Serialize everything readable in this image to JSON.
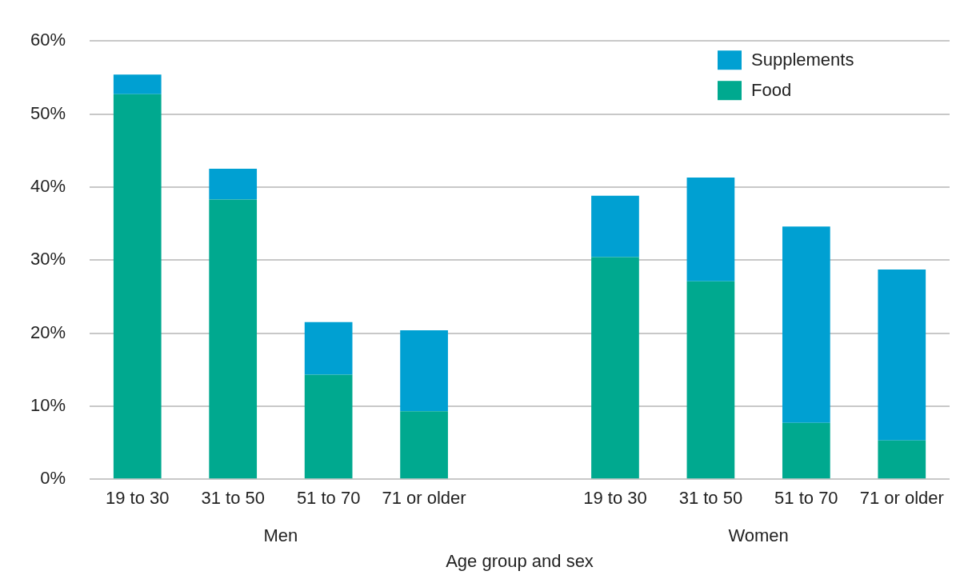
{
  "chart_data": {
    "type": "bar",
    "stacked": true,
    "categories": [
      "19 to 30",
      "31 to 50",
      "51 to 70",
      "71 or older",
      null,
      "19 to 30",
      "31 to 50",
      "51 to 70",
      "71 or older"
    ],
    "series": [
      {
        "name": "Food",
        "color": "#00a98f",
        "values": [
          52.7,
          38.3,
          14.3,
          9.3,
          null,
          30.4,
          27.1,
          7.7,
          5.3
        ]
      },
      {
        "name": "Supplements",
        "color": "#00a0d2",
        "values": [
          2.7,
          4.2,
          7.2,
          11.1,
          null,
          8.4,
          14.2,
          26.9,
          23.4
        ]
      }
    ],
    "ylim": [
      0,
      60
    ],
    "yticks": [
      {
        "value": 0,
        "label": "0%"
      },
      {
        "value": 10,
        "label": "10%"
      },
      {
        "value": 20,
        "label": "20%"
      },
      {
        "value": 30,
        "label": "30%"
      },
      {
        "value": 40,
        "label": "40%"
      },
      {
        "value": 50,
        "label": "50%"
      },
      {
        "value": 60,
        "label": "60%"
      }
    ],
    "xlabel": "Age group and sex",
    "annotations": [
      "Men",
      "Women"
    ],
    "grid": "y",
    "legend": "top right"
  }
}
